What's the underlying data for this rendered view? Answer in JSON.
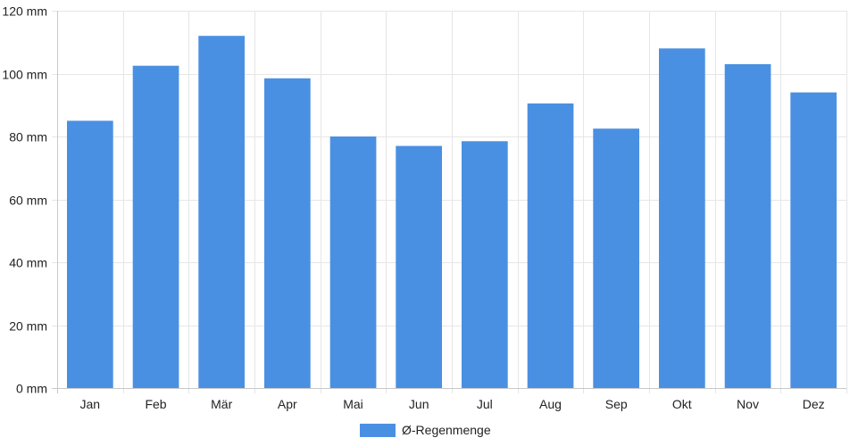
{
  "chart_data": {
    "type": "bar",
    "categories": [
      "Jan",
      "Feb",
      "Mär",
      "Apr",
      "Mai",
      "Jun",
      "Jul",
      "Aug",
      "Sep",
      "Okt",
      "Nov",
      "Dez"
    ],
    "series": [
      {
        "name": "Ø-Regenmenge",
        "values": [
          85,
          102.5,
          112,
          98.5,
          80,
          77,
          78.5,
          90.5,
          82.5,
          108,
          103,
          94
        ],
        "color": "#4a90e2"
      }
    ],
    "y_ticks": [
      "0 mm",
      "20 mm",
      "40 mm",
      "60 mm",
      "80 mm",
      "100 mm",
      "120 mm"
    ],
    "ylim": [
      0,
      120
    ],
    "y_tick_step": 20,
    "grid": true,
    "legend_position": "bottom"
  }
}
